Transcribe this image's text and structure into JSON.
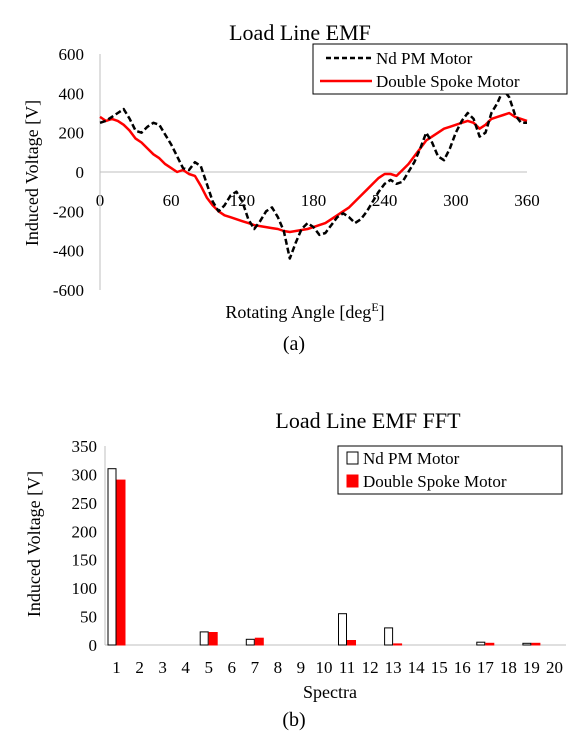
{
  "chart_data": [
    {
      "type": "line",
      "title": "Load Line EMF",
      "xlabel": "Rotating Angle [deg",
      "xlabel_sup": "E",
      "xlabel_suffix": "]",
      "ylabel": "Induced Voltage [V]",
      "caption": "(a)",
      "xlim": [
        0,
        360
      ],
      "ylim": [
        -600,
        600
      ],
      "x_ticks": [
        0,
        60,
        120,
        180,
        240,
        300,
        360
      ],
      "y_ticks": [
        600,
        400,
        200,
        0,
        -200,
        -400,
        -600
      ],
      "grid": false,
      "legend": "top-right",
      "series": [
        {
          "name": "Nd PM Motor",
          "color": "#000000",
          "style": "dashed",
          "x": [
            0,
            5,
            10,
            15,
            20,
            25,
            30,
            35,
            40,
            45,
            50,
            55,
            60,
            65,
            70,
            75,
            80,
            85,
            90,
            95,
            100,
            105,
            110,
            115,
            120,
            125,
            130,
            135,
            140,
            145,
            150,
            155,
            160,
            165,
            170,
            175,
            180,
            185,
            190,
            195,
            200,
            205,
            210,
            215,
            220,
            225,
            230,
            235,
            240,
            245,
            250,
            255,
            260,
            265,
            270,
            275,
            280,
            285,
            290,
            295,
            300,
            305,
            310,
            315,
            320,
            325,
            330,
            335,
            340,
            345,
            350,
            355,
            360
          ],
          "y": [
            250,
            260,
            280,
            300,
            320,
            270,
            210,
            200,
            230,
            250,
            240,
            190,
            140,
            80,
            20,
            10,
            50,
            30,
            -60,
            -150,
            -200,
            -170,
            -120,
            -100,
            -150,
            -240,
            -290,
            -250,
            -200,
            -180,
            -230,
            -300,
            -440,
            -360,
            -290,
            -260,
            -280,
            -320,
            -310,
            -270,
            -230,
            -210,
            -230,
            -260,
            -240,
            -200,
            -150,
            -100,
            -60,
            -40,
            -60,
            -50,
            0,
            50,
            120,
            200,
            150,
            80,
            60,
            120,
            200,
            260,
            300,
            270,
            180,
            200,
            300,
            350,
            420,
            380,
            290,
            250,
            250
          ]
        },
        {
          "name": "Double Spoke Motor",
          "color": "#ff0000",
          "style": "solid",
          "x": [
            0,
            5,
            10,
            15,
            20,
            25,
            30,
            35,
            40,
            45,
            50,
            55,
            60,
            65,
            70,
            75,
            80,
            85,
            90,
            95,
            100,
            105,
            110,
            115,
            120,
            125,
            130,
            135,
            140,
            145,
            150,
            155,
            160,
            165,
            170,
            175,
            180,
            185,
            190,
            195,
            200,
            205,
            210,
            215,
            220,
            225,
            230,
            235,
            240,
            245,
            250,
            255,
            260,
            265,
            270,
            275,
            280,
            285,
            290,
            295,
            300,
            305,
            310,
            315,
            320,
            325,
            330,
            335,
            340,
            345,
            350,
            355,
            360
          ],
          "y": [
            280,
            260,
            270,
            260,
            240,
            210,
            170,
            150,
            120,
            90,
            70,
            40,
            20,
            0,
            10,
            -10,
            -20,
            -70,
            -130,
            -170,
            -200,
            -220,
            -230,
            -240,
            -250,
            -260,
            -270,
            -275,
            -280,
            -285,
            -290,
            -300,
            -305,
            -300,
            -295,
            -290,
            -280,
            -270,
            -260,
            -240,
            -220,
            -200,
            -180,
            -150,
            -120,
            -90,
            -60,
            -30,
            -10,
            -10,
            -20,
            10,
            40,
            80,
            120,
            160,
            180,
            200,
            220,
            230,
            240,
            250,
            260,
            250,
            220,
            240,
            270,
            280,
            290,
            300,
            280,
            270,
            260
          ]
        }
      ]
    },
    {
      "type": "bar",
      "title": "Load Line EMF FFT",
      "xlabel": "Spectra",
      "ylabel": "Induced Voltage [V]",
      "caption": "(b)",
      "ylim": [
        0,
        350
      ],
      "y_ticks": [
        350,
        300,
        250,
        200,
        150,
        100,
        50,
        0
      ],
      "grid": false,
      "legend": "top-right",
      "categories": [
        "1",
        "2",
        "3",
        "4",
        "5",
        "6",
        "7",
        "8",
        "9",
        "10",
        "11",
        "12",
        "13",
        "14",
        "15",
        "16",
        "17",
        "18",
        "19",
        "20"
      ],
      "series": [
        {
          "name": "Nd PM Motor",
          "fill": "#ffffff",
          "stroke": "#000000",
          "values": [
            310,
            0,
            0,
            0,
            23,
            0,
            10,
            0,
            0,
            0,
            55,
            0,
            30,
            0,
            0,
            0,
            5,
            0,
            3,
            0
          ]
        },
        {
          "name": "Double Spoke Motor",
          "fill": "#ff0000",
          "stroke": "#ff0000",
          "values": [
            290,
            0,
            0,
            0,
            22,
            0,
            12,
            0,
            0,
            0,
            8,
            0,
            2,
            0,
            0,
            0,
            3,
            0,
            3,
            0
          ]
        }
      ]
    }
  ]
}
